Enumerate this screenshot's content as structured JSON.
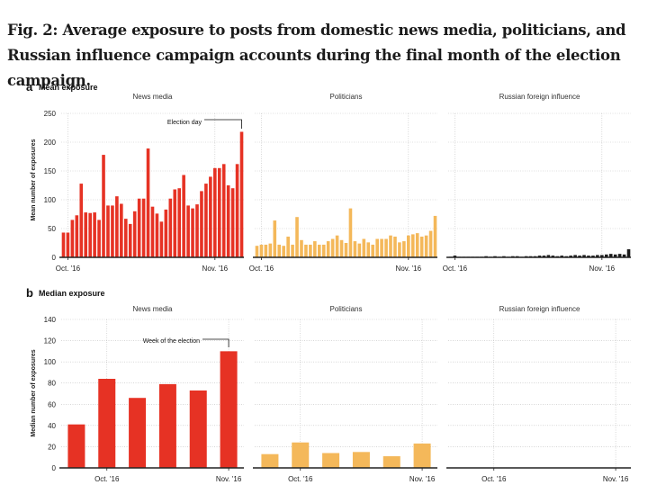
{
  "figure_title": "Fig. 2: Average exposure to posts from domestic news media, politicians, and Russian influence campaign accounts during the final month of the election campaign.",
  "colors": {
    "news_media": "#e63224",
    "politicians": "#f4b85a",
    "russian_foreign_influence": "#1a1a1a",
    "grid": "#bfbfbf",
    "axis": "#222222"
  },
  "chart_data": [
    {
      "type": "bar",
      "panel_letter": "a",
      "panel_title": "Mean exposure",
      "ylabel": "Mean number of exposures",
      "ylim": [
        0,
        250
      ],
      "yticks": [
        0,
        50,
        100,
        150,
        200,
        250
      ],
      "grid": true,
      "x_tick_labels": [
        "Oct. '16",
        "Nov. '16"
      ],
      "x_tick_index": [
        1,
        34
      ],
      "facets": [
        {
          "name": "News media",
          "color": "#e63224",
          "values": [
            43,
            43,
            65,
            73,
            128,
            78,
            77,
            78,
            65,
            178,
            90,
            90,
            106,
            93,
            67,
            58,
            80,
            102,
            102,
            189,
            88,
            76,
            62,
            83,
            102,
            118,
            120,
            143,
            90,
            85,
            92,
            115,
            128,
            140,
            155,
            155,
            162,
            125,
            120,
            162,
            218
          ],
          "annotation": {
            "label": "Election day",
            "index": 40
          }
        },
        {
          "name": "Politicians",
          "color": "#f4b85a",
          "values": [
            20,
            22,
            22,
            24,
            64,
            22,
            20,
            36,
            22,
            70,
            30,
            22,
            22,
            28,
            22,
            22,
            28,
            32,
            38,
            30,
            25,
            85,
            28,
            24,
            32,
            26,
            22,
            32,
            32,
            32,
            38,
            36,
            26,
            28,
            38,
            40,
            42,
            36,
            38,
            46,
            72
          ]
        },
        {
          "name": "Russian foreign influence",
          "color": "#1a1a1a",
          "values": [
            1,
            3,
            1,
            1,
            1,
            1,
            1,
            1,
            2,
            1,
            2,
            1,
            2,
            1,
            2,
            2,
            1,
            2,
            2,
            2,
            3,
            3,
            4,
            3,
            2,
            3,
            2,
            3,
            4,
            3,
            4,
            3,
            3,
            4,
            4,
            5,
            6,
            5,
            6,
            5,
            14
          ]
        }
      ]
    },
    {
      "type": "bar",
      "panel_letter": "b",
      "panel_title": "Median exposure",
      "ylabel": "Median number of exposures",
      "ylim": [
        0,
        140
      ],
      "yticks": [
        0,
        20,
        40,
        60,
        80,
        100,
        120,
        140
      ],
      "grid": true,
      "x_tick_labels": [
        "Oct. '16",
        "Nov. '16"
      ],
      "x_tick_index": [
        1,
        5
      ],
      "facets": [
        {
          "name": "News media",
          "color": "#e63224",
          "values": [
            41,
            84,
            66,
            79,
            73,
            110
          ],
          "annotation": {
            "label": "Week of the election",
            "index": 5
          }
        },
        {
          "name": "Politicians",
          "color": "#f4b85a",
          "values": [
            13,
            24,
            14,
            15,
            11,
            23
          ]
        },
        {
          "name": "Russian foreign influence",
          "color": "#1a1a1a",
          "values": [
            0,
            0,
            0,
            0,
            0,
            0
          ]
        }
      ]
    }
  ]
}
